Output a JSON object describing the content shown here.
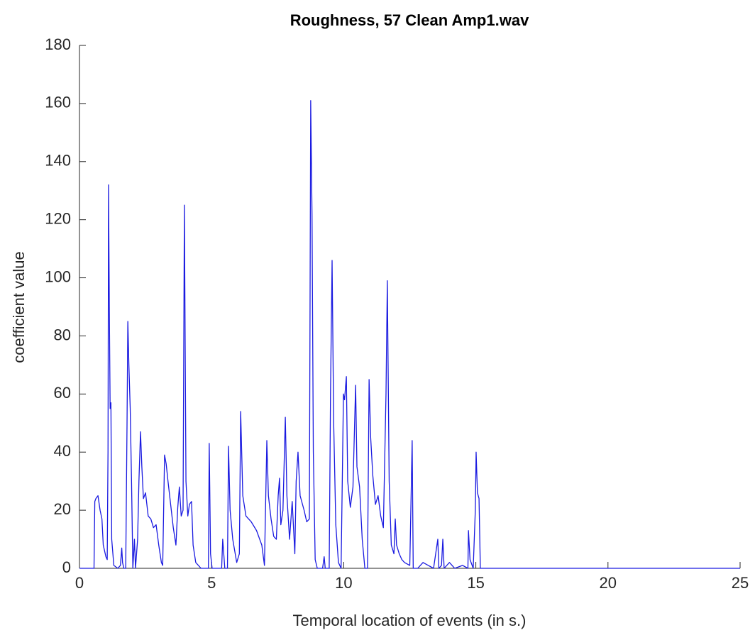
{
  "chart_data": {
    "type": "line",
    "title": "Roughness, 57 Clean Amp1.wav",
    "xlabel": "Temporal location of events (in s.)",
    "ylabel": "coefficient value",
    "xlim": [
      0,
      25
    ],
    "xticks": [
      0,
      5,
      10,
      15,
      20,
      25
    ],
    "ylim": [
      0,
      180
    ],
    "yticks": [
      0,
      20,
      40,
      60,
      80,
      100,
      120,
      140,
      160,
      180
    ],
    "grid": false,
    "series": [
      {
        "color": "#1a1ae0",
        "x": [
          0,
          0.55,
          0.58,
          0.62,
          0.7,
          0.78,
          0.85,
          0.9,
          0.95,
          1.0,
          1.05,
          1.08,
          1.1,
          1.13,
          1.16,
          1.19,
          1.22,
          1.3,
          1.45,
          1.55,
          1.6,
          1.63,
          1.68,
          1.75,
          1.8,
          1.83,
          1.87,
          1.92,
          1.97,
          2.02,
          2.08,
          2.12,
          2.2,
          2.25,
          2.31,
          2.36,
          2.42,
          2.5,
          2.6,
          2.7,
          2.8,
          2.9,
          3.0,
          3.1,
          3.15,
          3.22,
          3.28,
          3.35,
          3.45,
          3.55,
          3.65,
          3.72,
          3.78,
          3.85,
          3.92,
          3.97,
          4.03,
          4.1,
          4.16,
          4.24,
          4.3,
          4.4,
          4.6,
          4.8,
          4.88,
          4.91,
          4.96,
          5.02,
          5.2,
          5.38,
          5.42,
          5.5,
          5.6,
          5.64,
          5.7,
          5.8,
          5.95,
          6.05,
          6.1,
          6.18,
          6.3,
          6.5,
          6.7,
          6.9,
          7.0,
          7.09,
          7.15,
          7.25,
          7.35,
          7.45,
          7.52,
          7.57,
          7.62,
          7.7,
          7.79,
          7.85,
          7.95,
          8.05,
          8.15,
          8.2,
          8.27,
          8.35,
          8.5,
          8.6,
          8.7,
          8.75,
          8.8,
          8.85,
          8.92,
          9.0,
          9.2,
          9.26,
          9.3,
          9.45,
          9.5,
          9.56,
          9.62,
          9.7,
          9.8,
          9.9,
          9.99,
          10.03,
          10.1,
          10.15,
          10.25,
          10.35,
          10.45,
          10.5,
          10.6,
          10.7,
          10.8,
          10.9,
          10.96,
          11.02,
          11.1,
          11.2,
          11.3,
          11.4,
          11.5,
          11.6,
          11.65,
          11.72,
          11.8,
          11.9,
          11.95,
          12.0,
          12.1,
          12.2,
          12.3,
          12.5,
          12.59,
          12.63,
          12.8,
          13.0,
          13.2,
          13.4,
          13.56,
          13.6,
          13.7,
          13.75,
          13.8,
          14.0,
          14.2,
          14.5,
          14.7,
          14.72,
          14.78,
          14.9,
          14.98,
          15.01,
          15.06,
          15.12,
          15.17,
          25
        ],
        "values": [
          0,
          0,
          23,
          24,
          25,
          20,
          17,
          8,
          6,
          4,
          3,
          40,
          132,
          90,
          55,
          57,
          10,
          1,
          0,
          1,
          7,
          2,
          0,
          0,
          50,
          85,
          70,
          55,
          30,
          0,
          10,
          0,
          10,
          30,
          47,
          35,
          24,
          26,
          18,
          17,
          14,
          15,
          8,
          2,
          1,
          39,
          36,
          30,
          22,
          14,
          8,
          21,
          28,
          18,
          20,
          125,
          30,
          18,
          22,
          23,
          8,
          2,
          0,
          0,
          0,
          43,
          5,
          0,
          0,
          0,
          10,
          0,
          0,
          42,
          20,
          10,
          2,
          5,
          54,
          25,
          18,
          16,
          13,
          8,
          1,
          44,
          25,
          17,
          11,
          10,
          25,
          31,
          15,
          20,
          52,
          25,
          10,
          23,
          5,
          30,
          40,
          25,
          20,
          16,
          17,
          161,
          122,
          40,
          3,
          0,
          0,
          4,
          0,
          0,
          60,
          106,
          50,
          15,
          2,
          0,
          60,
          58,
          66,
          30,
          21,
          28,
          63,
          35,
          28,
          10,
          0,
          0,
          65,
          45,
          32,
          22,
          25,
          18,
          14,
          60,
          99,
          30,
          8,
          5,
          17,
          8,
          5,
          3,
          2,
          1,
          44,
          0,
          0,
          2,
          1,
          0,
          10,
          0,
          1,
          10,
          0,
          2,
          0,
          1,
          0,
          13,
          3,
          0,
          20,
          40,
          26,
          24,
          0,
          0
        ]
      }
    ]
  }
}
